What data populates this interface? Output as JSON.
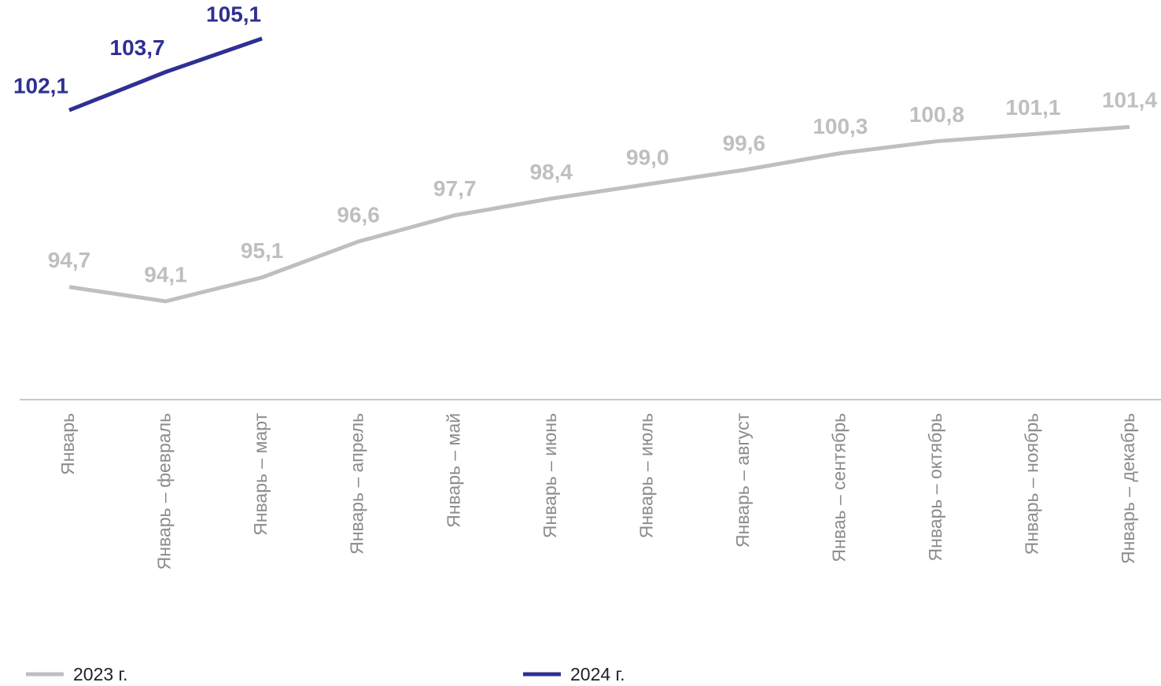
{
  "chart_data": {
    "type": "line",
    "categories": [
      "Январь",
      "Январь – февраль",
      "Январь – март",
      "Январь – апрель",
      "Январь – май",
      "Январь – июнь",
      "Январь – июль",
      "Январь – август",
      "Янваь – сентябрь",
      "Январь – октябрь",
      "Январь – ноябрь",
      "Январь – декабрь"
    ],
    "series": [
      {
        "name": "2023 г.",
        "color": "#bfbfbf",
        "values": [
          94.7,
          94.1,
          95.1,
          96.6,
          97.7,
          98.4,
          99.0,
          99.6,
          100.3,
          100.8,
          101.1,
          101.4
        ],
        "value_labels": [
          "94,7",
          "94,1",
          "95,1",
          "96,6",
          "97,7",
          "98,4",
          "99,0",
          "99,6",
          "100,3",
          "100,8",
          "101,1",
          "101,4"
        ]
      },
      {
        "name": "2024 г.",
        "color": "#2e3092",
        "values": [
          102.1,
          103.7,
          105.1,
          null,
          null,
          null,
          null,
          null,
          null,
          null,
          null,
          null
        ],
        "value_labels": [
          "102,1",
          "103,7",
          "105,1",
          null,
          null,
          null,
          null,
          null,
          null,
          null,
          null,
          null
        ]
      }
    ]
  }
}
